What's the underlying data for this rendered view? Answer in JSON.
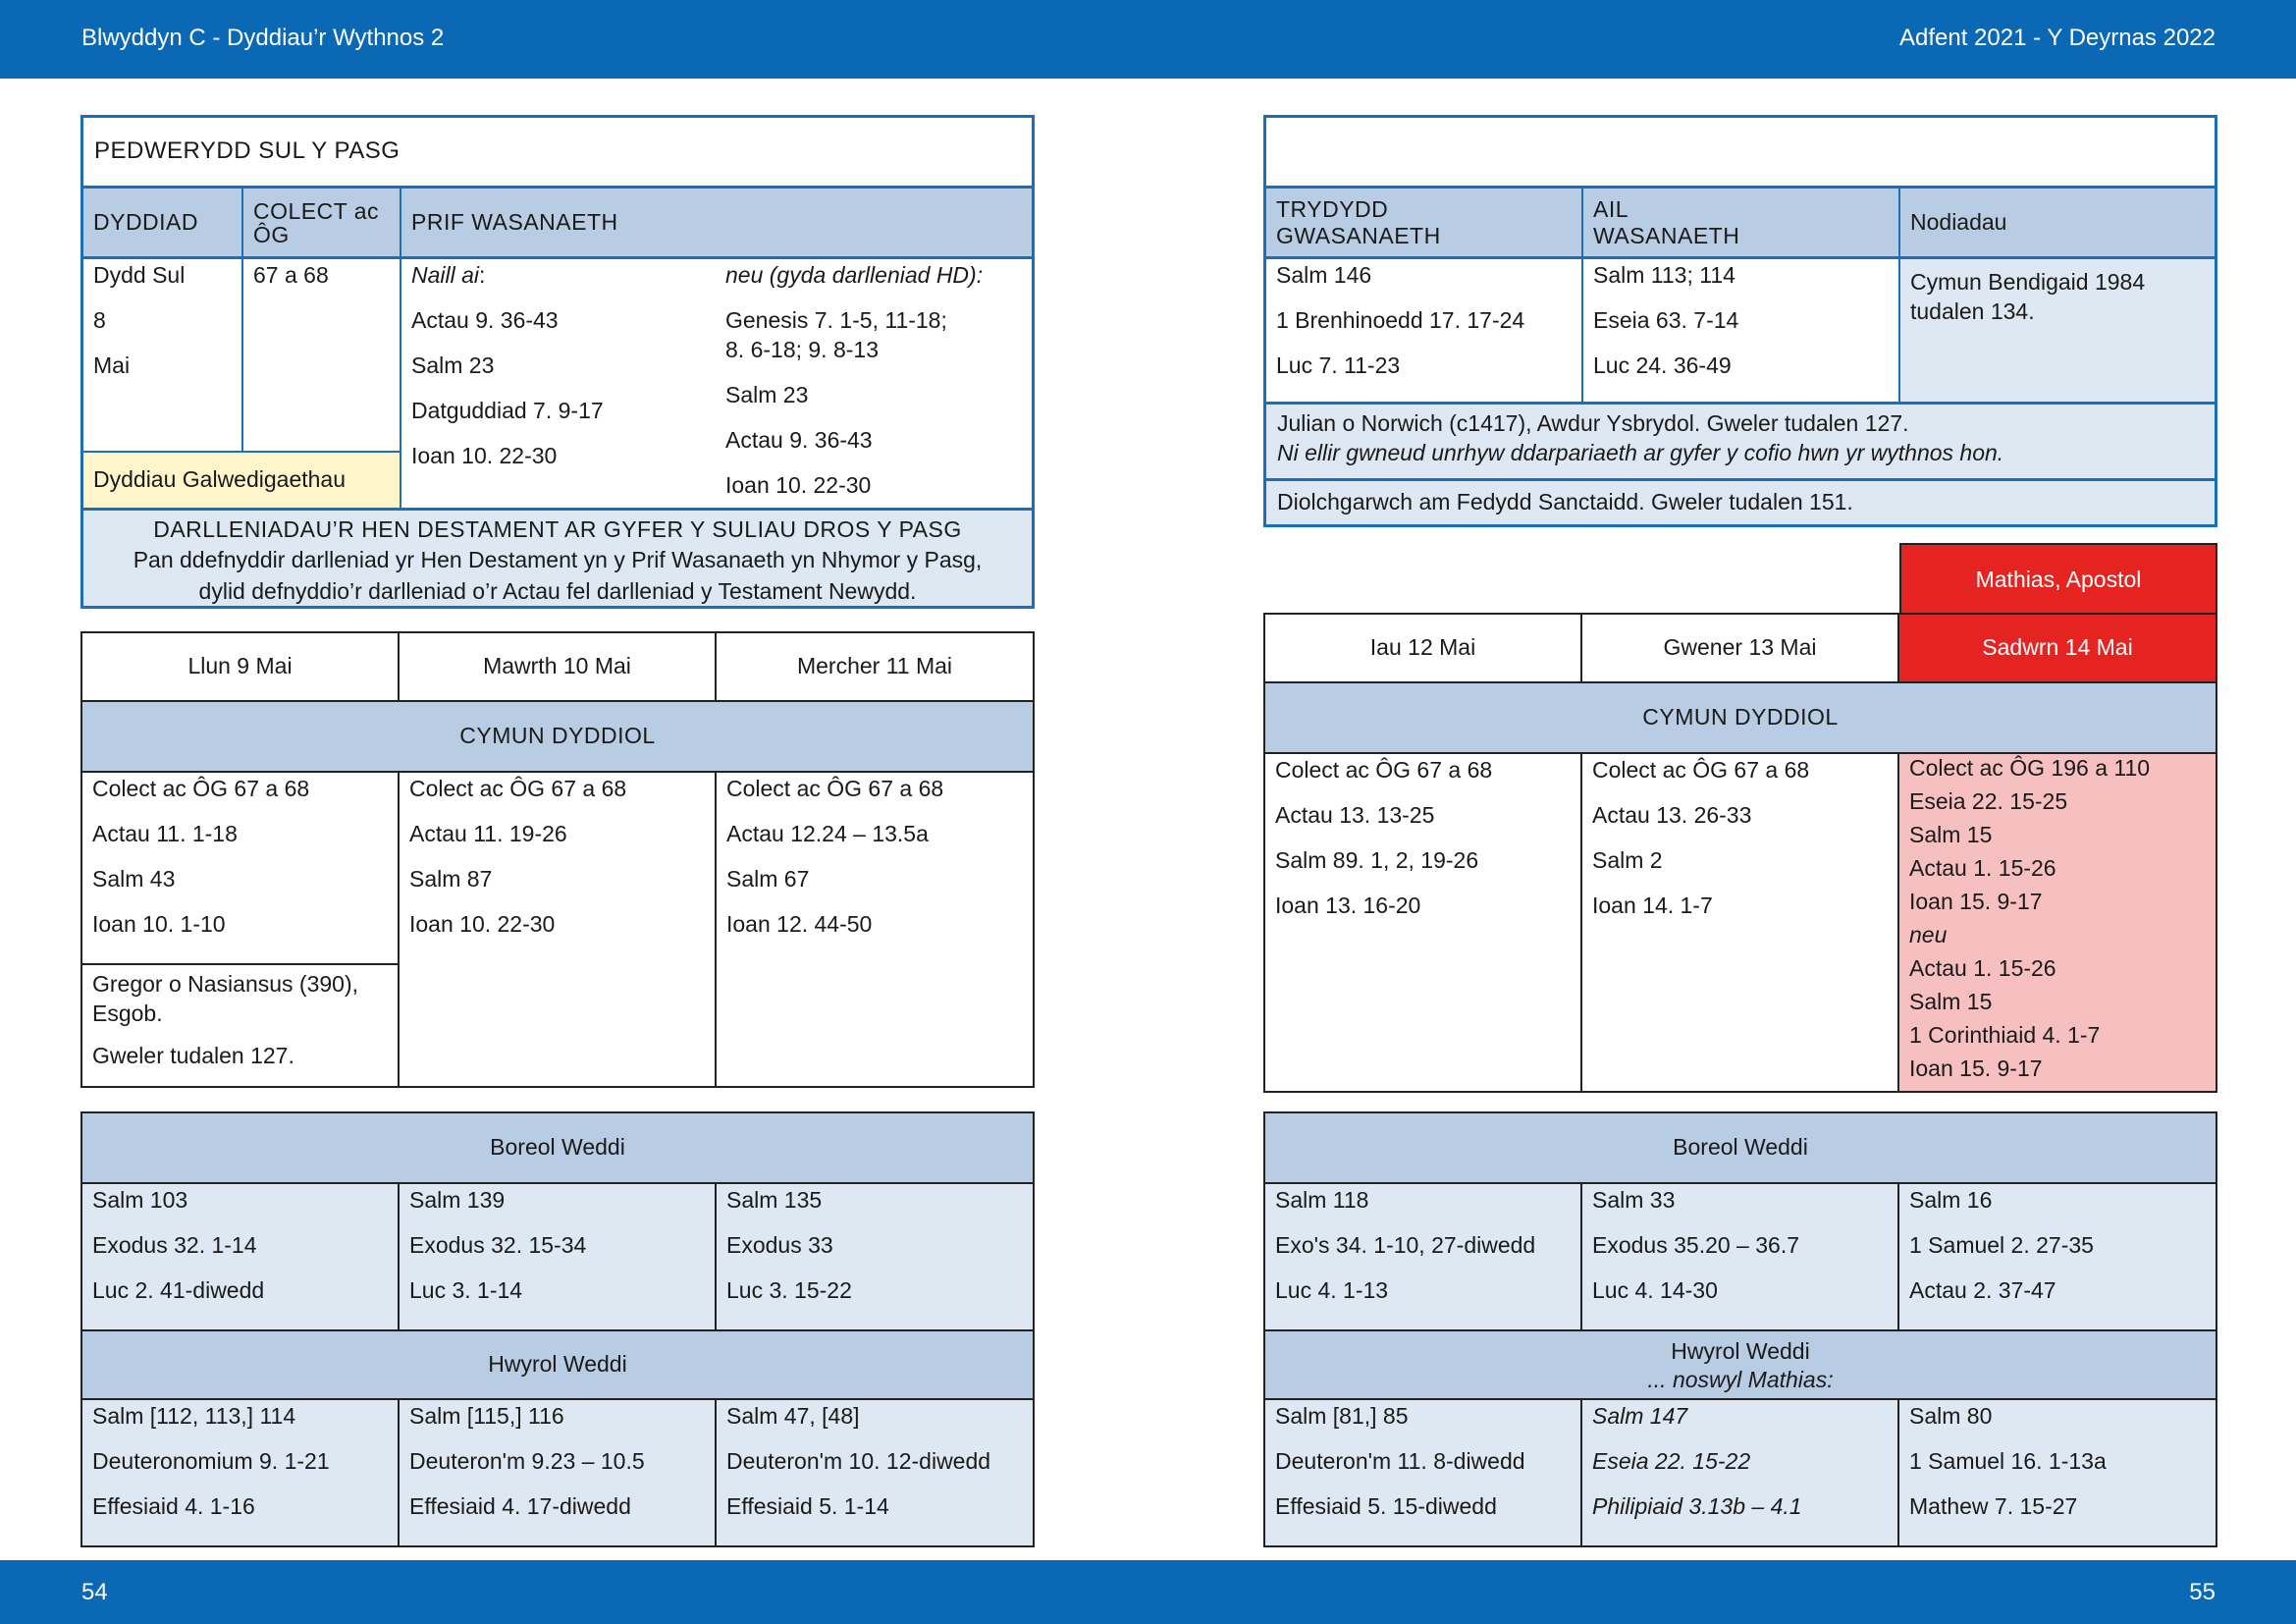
{
  "header": {
    "left": "Blwyddyn  C - Dyddiau’r Wythnos 2",
    "right": "Adfent 2021 - Y Deyrnas 2022"
  },
  "footer": {
    "left_page": "54",
    "right_page": "55"
  },
  "left": {
    "sunday": {
      "title": "PEDWERYDD SUL Y PASG",
      "col_headers": {
        "date": "DYDDIAD",
        "collect": "COLECT ac ÔG",
        "main": "PRIF WASANAETH"
      },
      "date_lines": [
        "Dydd Sul",
        "8",
        "Mai"
      ],
      "collect": "67 a 68",
      "main_a_heading": "Naill ai",
      "main_a": [
        "Actau 9. 36-43",
        "Salm 23",
        "Datguddiad 7. 9-17",
        "Ioan 10. 22-30"
      ],
      "main_b_heading": "neu (gyda darlleniad HD):",
      "main_b": [
        "Genesis 7. 1-5, 11-18;",
        "8. 6-18; 9. 8-13",
        "Salm 23",
        "Actau 9. 36-43",
        "Ioan 10. 22-30"
      ],
      "vocation": "Dyddiau Galwedigaethau",
      "note_title": "DARLLENIADAU’R HEN DESTAMENT AR GYFER Y SULIAU DROS Y PASG",
      "note_line1": "Pan ddefnyddir darlleniad yr Hen Destament yn y Prif Wasanaeth yn Nhymor y Pasg,",
      "note_line2": "dylid defnyddio’r darlleniad o’r Actau fel darlleniad y Testament Newydd."
    },
    "weekdays": {
      "days": [
        "Llun 9 Mai",
        "Mawrth 10 Mai",
        "Mercher 11 Mai"
      ],
      "section": "CYMUN DYDDIOL",
      "readings": [
        [
          "Colect ac ÔG 67 a 68",
          "Actau 11. 1-18",
          "Salm 43",
          "Ioan 10. 1-10"
        ],
        [
          "Colect ac ÔG 67 a 68",
          "Actau 11. 19-26",
          "Salm 87",
          "Ioan 10. 22-30"
        ],
        [
          "Colect ac ÔG 67 a 68",
          "Actau 12.24 – 13.5a",
          "Salm 67",
          "Ioan 12. 44-50"
        ]
      ],
      "commem_name": "Gregor o Nasiansus (390),",
      "commem_name2": "Esgob.",
      "commem_see": "Gweler tudalen 127."
    },
    "offices": {
      "morning_title": "Boreol Weddi",
      "morning": [
        [
          "Salm 103",
          "Exodus 32. 1-14",
          "Luc 2. 41-diwedd"
        ],
        [
          "Salm 139",
          "Exodus 32. 15-34",
          "Luc 3. 1-14"
        ],
        [
          "Salm 135",
          "Exodus 33",
          "Luc 3. 15-22"
        ]
      ],
      "evening_title": "Hwyrol Weddi",
      "evening": [
        [
          "Salm [112, 113,] 114",
          "Deuteronomium 9. 1-21",
          "Effesiaid 4. 1-16"
        ],
        [
          "Salm [115,] 116",
          "Deuteron'm 9.23 – 10.5",
          "Effesiaid 4. 17-diwedd"
        ],
        [
          "Salm 47, [48]",
          "Deuteron'm 10. 12-diwedd",
          "Effesiaid 5. 1-14"
        ]
      ]
    }
  },
  "right": {
    "sunday": {
      "title": "",
      "col_headers": {
        "third": "TRYDYDD GWASANAETH",
        "second": "AIL WASANAETH",
        "notes": "Nodiadau"
      },
      "third": [
        "Salm 146",
        "1 Brenhinoedd 17. 17-24",
        "Luc 7. 11-23"
      ],
      "second": [
        "Salm 113; 114",
        "Eseia 63. 7-14",
        "Luc 24. 36-49"
      ],
      "notes": "Cymun Bendigaid 1984 tudalen 134.",
      "julian_line1": "Julian o Norwich (c1417), Awdur Ysbrydol. Gweler tudalen 127.",
      "julian_line2": "Ni ellir gwneud unrhyw ddarpariaeth ar gyfer y cofio hwn yr wythnos hon.",
      "baptism": "Diolchgarwch am Fedydd Sanctaidd. Gweler tudalen 151."
    },
    "weekdays": {
      "feast": "Mathias, Apostol",
      "days": [
        "Iau 12 Mai",
        "Gwener 13 Mai",
        "Sadwrn 14 Mai"
      ],
      "section": "CYMUN DYDDIOL",
      "readings": [
        [
          "Colect ac ÔG 67 a 68",
          "Actau 13. 13-25",
          "Salm 89. 1, 2, 19-26",
          "Ioan 13. 16-20"
        ],
        [
          "Colect ac ÔG 67 a 68",
          "Actau 13. 26-33",
          "Salm 2",
          "Ioan 14. 1-7"
        ]
      ],
      "saturday": [
        "Colect ac ÔG 196 a 110",
        "Eseia 22. 15-25",
        "Salm 15",
        "Actau 1. 15-26",
        "Ioan 15. 9-17",
        "neu",
        "Actau 1. 15-26",
        "Salm 15",
        "1 Corinthiaid 4. 1-7",
        "Ioan 15. 9-17"
      ]
    },
    "offices": {
      "morning_title": "Boreol Weddi",
      "morning": [
        [
          "Salm 118",
          "Exo's 34. 1-10, 27-diwedd",
          "Luc 4. 1-13"
        ],
        [
          "Salm 33",
          "Exodus 35.20 – 36.7",
          "Luc 4. 14-30"
        ],
        [
          "Salm 16",
          "1 Samuel 2. 27-35",
          "Actau 2. 37-47"
        ]
      ],
      "evening_title": "Hwyrol Weddi",
      "evening_subtitle": "... noswyl Mathias:",
      "evening": [
        [
          "Salm [81,] 85",
          "Deuteron'm 11. 8-diwedd",
          "Effesiaid 5. 15-diwedd"
        ],
        [
          "Salm 147",
          "Eseia 22. 15-22",
          "Philipiaid 3.13b – 4.1"
        ],
        [
          "Salm 80",
          "1 Samuel 16. 1-13a",
          "Mathew 7. 15-27"
        ]
      ]
    }
  }
}
